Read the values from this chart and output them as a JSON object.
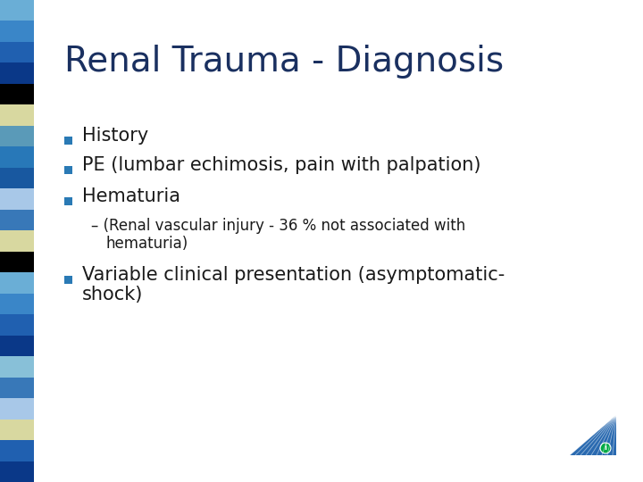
{
  "title": "Renal Trauma - Diagnosis",
  "title_color": "#1a3060",
  "title_fontsize": 28,
  "background_color": "#ffffff",
  "bullet_color": "#2a7ab5",
  "text_color": "#1a1a1a",
  "font_size_body": 15,
  "font_size_sub": 12,
  "left_bar_colors": [
    "#6aaed6",
    "#3a86c8",
    "#2060b0",
    "#0a3888",
    "#000000",
    "#d8d8a0",
    "#5a9ab8",
    "#2878b8",
    "#1858a0",
    "#a8c8e8",
    "#3878b8",
    "#d8d8a0",
    "#000000",
    "#6aaed6",
    "#3a86c8",
    "#2060b0",
    "#0a3888",
    "#88c0d8",
    "#3878b8",
    "#a8c8e8",
    "#d8d8a0",
    "#2060b0",
    "#0a3888"
  ],
  "sub_line1": "(Renal vascular injury - 36 % not associated with",
  "sub_line2": "hematuria)",
  "var_line1": "Variable clinical presentation (asymptomatic-",
  "var_line2": "shock)"
}
